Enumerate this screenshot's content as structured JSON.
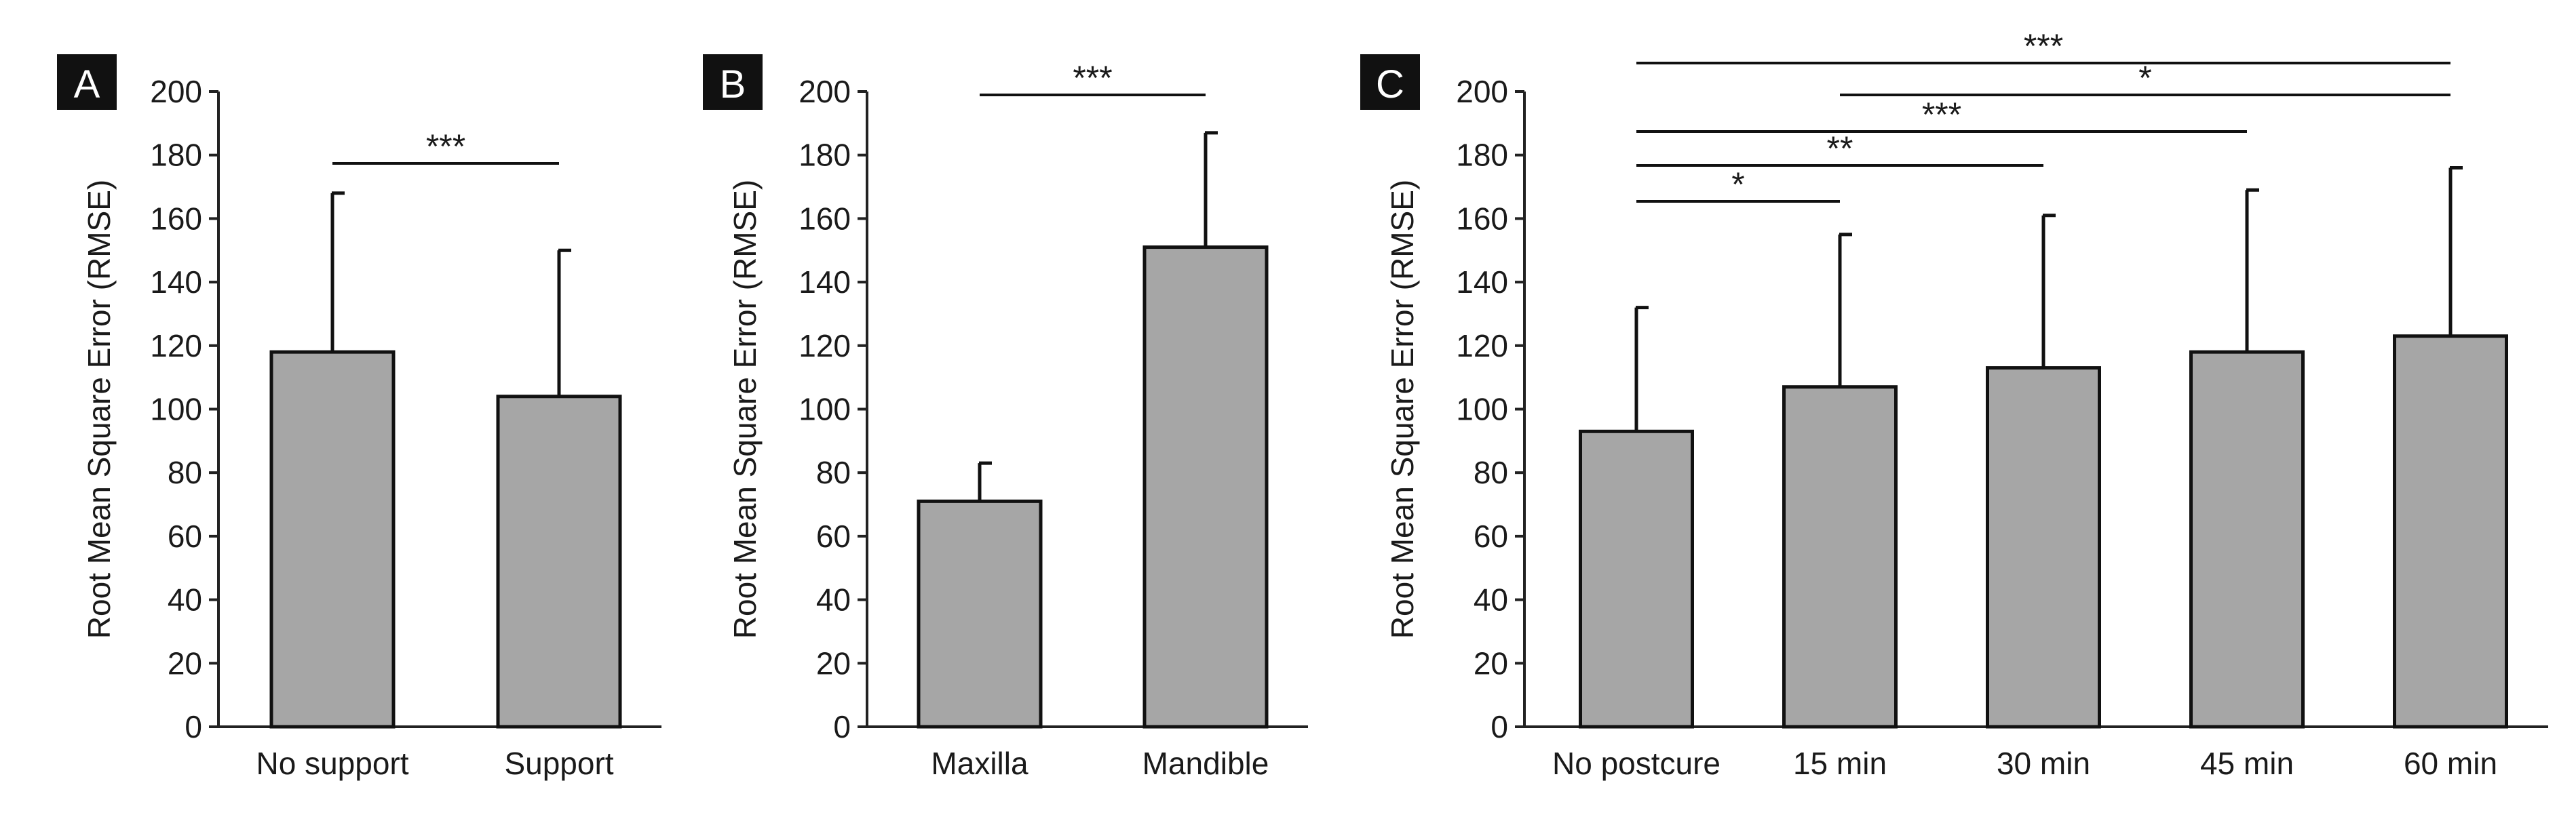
{
  "chart_data": [
    {
      "panel": "A",
      "type": "bar",
      "categories": [
        "No support",
        "Support"
      ],
      "values": [
        118,
        104
      ],
      "error_upper": [
        168,
        150
      ],
      "ylabel": "Root Mean Square Error (RMSE)",
      "xlabel": "",
      "ylim": [
        0,
        200
      ],
      "yticks": [
        0,
        20,
        40,
        60,
        80,
        100,
        120,
        140,
        160,
        180,
        200
      ],
      "bar_color": "#a6a6a6",
      "significance": [
        {
          "from": 0,
          "to": 1,
          "label": "***"
        }
      ]
    },
    {
      "panel": "B",
      "type": "bar",
      "categories": [
        "Maxilla",
        "Mandible"
      ],
      "values": [
        71,
        151
      ],
      "error_upper": [
        83,
        187
      ],
      "ylabel": "Root Mean Square Error (RMSE)",
      "xlabel": "",
      "ylim": [
        0,
        200
      ],
      "yticks": [
        0,
        20,
        40,
        60,
        80,
        100,
        120,
        140,
        160,
        180,
        200
      ],
      "bar_color": "#a6a6a6",
      "significance": [
        {
          "from": 0,
          "to": 1,
          "label": "***"
        }
      ]
    },
    {
      "panel": "C",
      "type": "bar",
      "categories": [
        "No postcure",
        "15 min",
        "30 min",
        "45 min",
        "60 min"
      ],
      "values": [
        93,
        107,
        113,
        118,
        123
      ],
      "error_upper": [
        132,
        155,
        161,
        169,
        176
      ],
      "ylabel": "Root Mean Square Error (RMSE)",
      "xlabel": "",
      "ylim": [
        0,
        200
      ],
      "yticks": [
        0,
        20,
        40,
        60,
        80,
        100,
        120,
        140,
        160,
        180,
        200
      ],
      "bar_color": "#a6a6a6",
      "significance": [
        {
          "from": 0,
          "to": 4,
          "label": "***"
        },
        {
          "from": 1,
          "to": 4,
          "label": "*"
        },
        {
          "from": 0,
          "to": 3,
          "label": "***"
        },
        {
          "from": 0,
          "to": 2,
          "label": "**"
        },
        {
          "from": 0,
          "to": 1,
          "label": "*"
        }
      ]
    }
  ]
}
